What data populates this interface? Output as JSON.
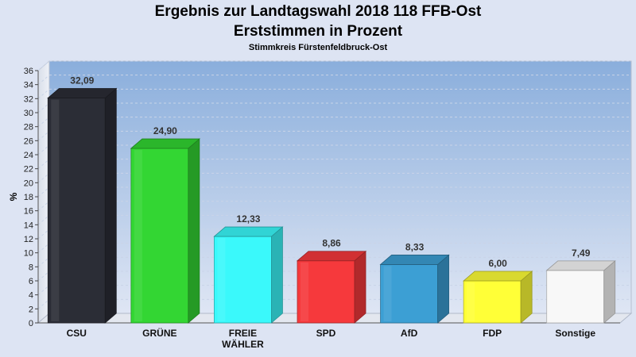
{
  "chart_data": {
    "type": "bar",
    "title": "Ergebnis zur Landtagswahl 2018 118 FFB-Ost",
    "subtitle": "Erststimmen in Prozent",
    "caption": "Stimmkreis Fürstenfeldbruck-Ost",
    "ylabel": "%",
    "xlabel": "",
    "ylim": [
      0,
      36
    ],
    "yticks": [
      0,
      2,
      4,
      6,
      8,
      10,
      12,
      14,
      16,
      18,
      20,
      22,
      24,
      26,
      28,
      30,
      32,
      34,
      36
    ],
    "grid": true,
    "categories": [
      "CSU",
      "GRÜNE",
      "FREIE WÄHLER",
      "SPD",
      "AfD",
      "FDP",
      "Sonstige"
    ],
    "category_lines": [
      [
        "CSU"
      ],
      [
        "GRÜNE"
      ],
      [
        "FREIE",
        "WÄHLER"
      ],
      [
        "SPD"
      ],
      [
        "AfD"
      ],
      [
        "FDP"
      ],
      [
        "Sonstige"
      ]
    ],
    "values": [
      32.09,
      24.9,
      12.33,
      8.86,
      8.33,
      6.0,
      7.49
    ],
    "value_labels": [
      "32,09",
      "24,90",
      "12,33",
      "8,86",
      "8,33",
      "6,00",
      "7,49"
    ],
    "colors": [
      "#2b2d36",
      "#33d633",
      "#3af9fb",
      "#f6393c",
      "#3c9fd4",
      "#ffff37",
      "#f8f8f8"
    ]
  }
}
